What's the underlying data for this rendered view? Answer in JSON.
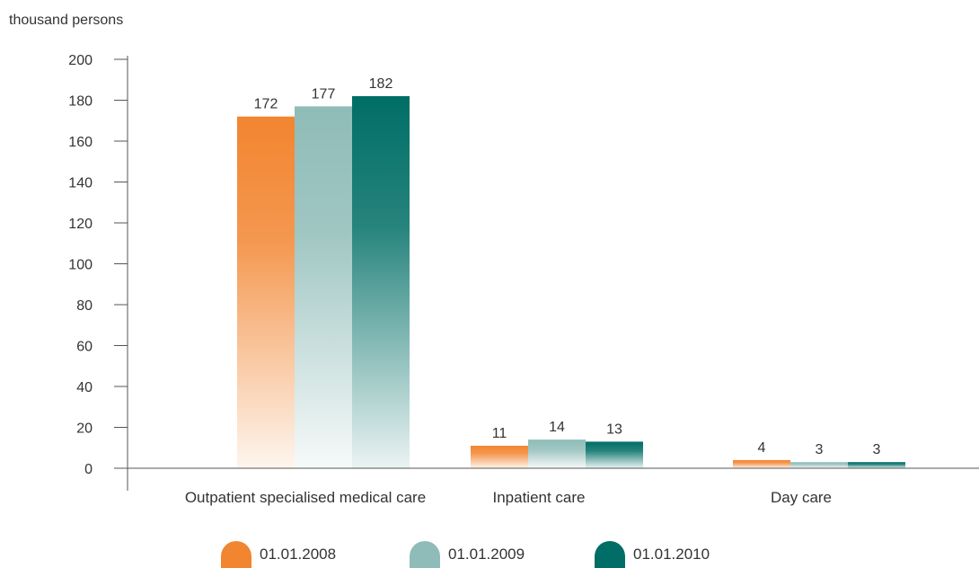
{
  "chart_data": {
    "type": "bar",
    "unit_label": "thousand persons",
    "categories": [
      "Outpatient specialised medical care",
      "Inpatient care",
      "Day care"
    ],
    "series": [
      {
        "name": "01.01.2008",
        "values": [
          172,
          11,
          4
        ],
        "color": "#f28530"
      },
      {
        "name": "01.01.2009",
        "values": [
          177,
          14,
          3
        ],
        "color": "#8fbcb8"
      },
      {
        "name": "01.01.2010",
        "values": [
          182,
          13,
          3
        ],
        "color": "#006e66"
      }
    ],
    "ylim": [
      0,
      200
    ],
    "yticks": [
      0,
      20,
      40,
      60,
      80,
      100,
      120,
      140,
      160,
      180,
      200
    ],
    "legend_position": "bottom",
    "grid": false
  }
}
